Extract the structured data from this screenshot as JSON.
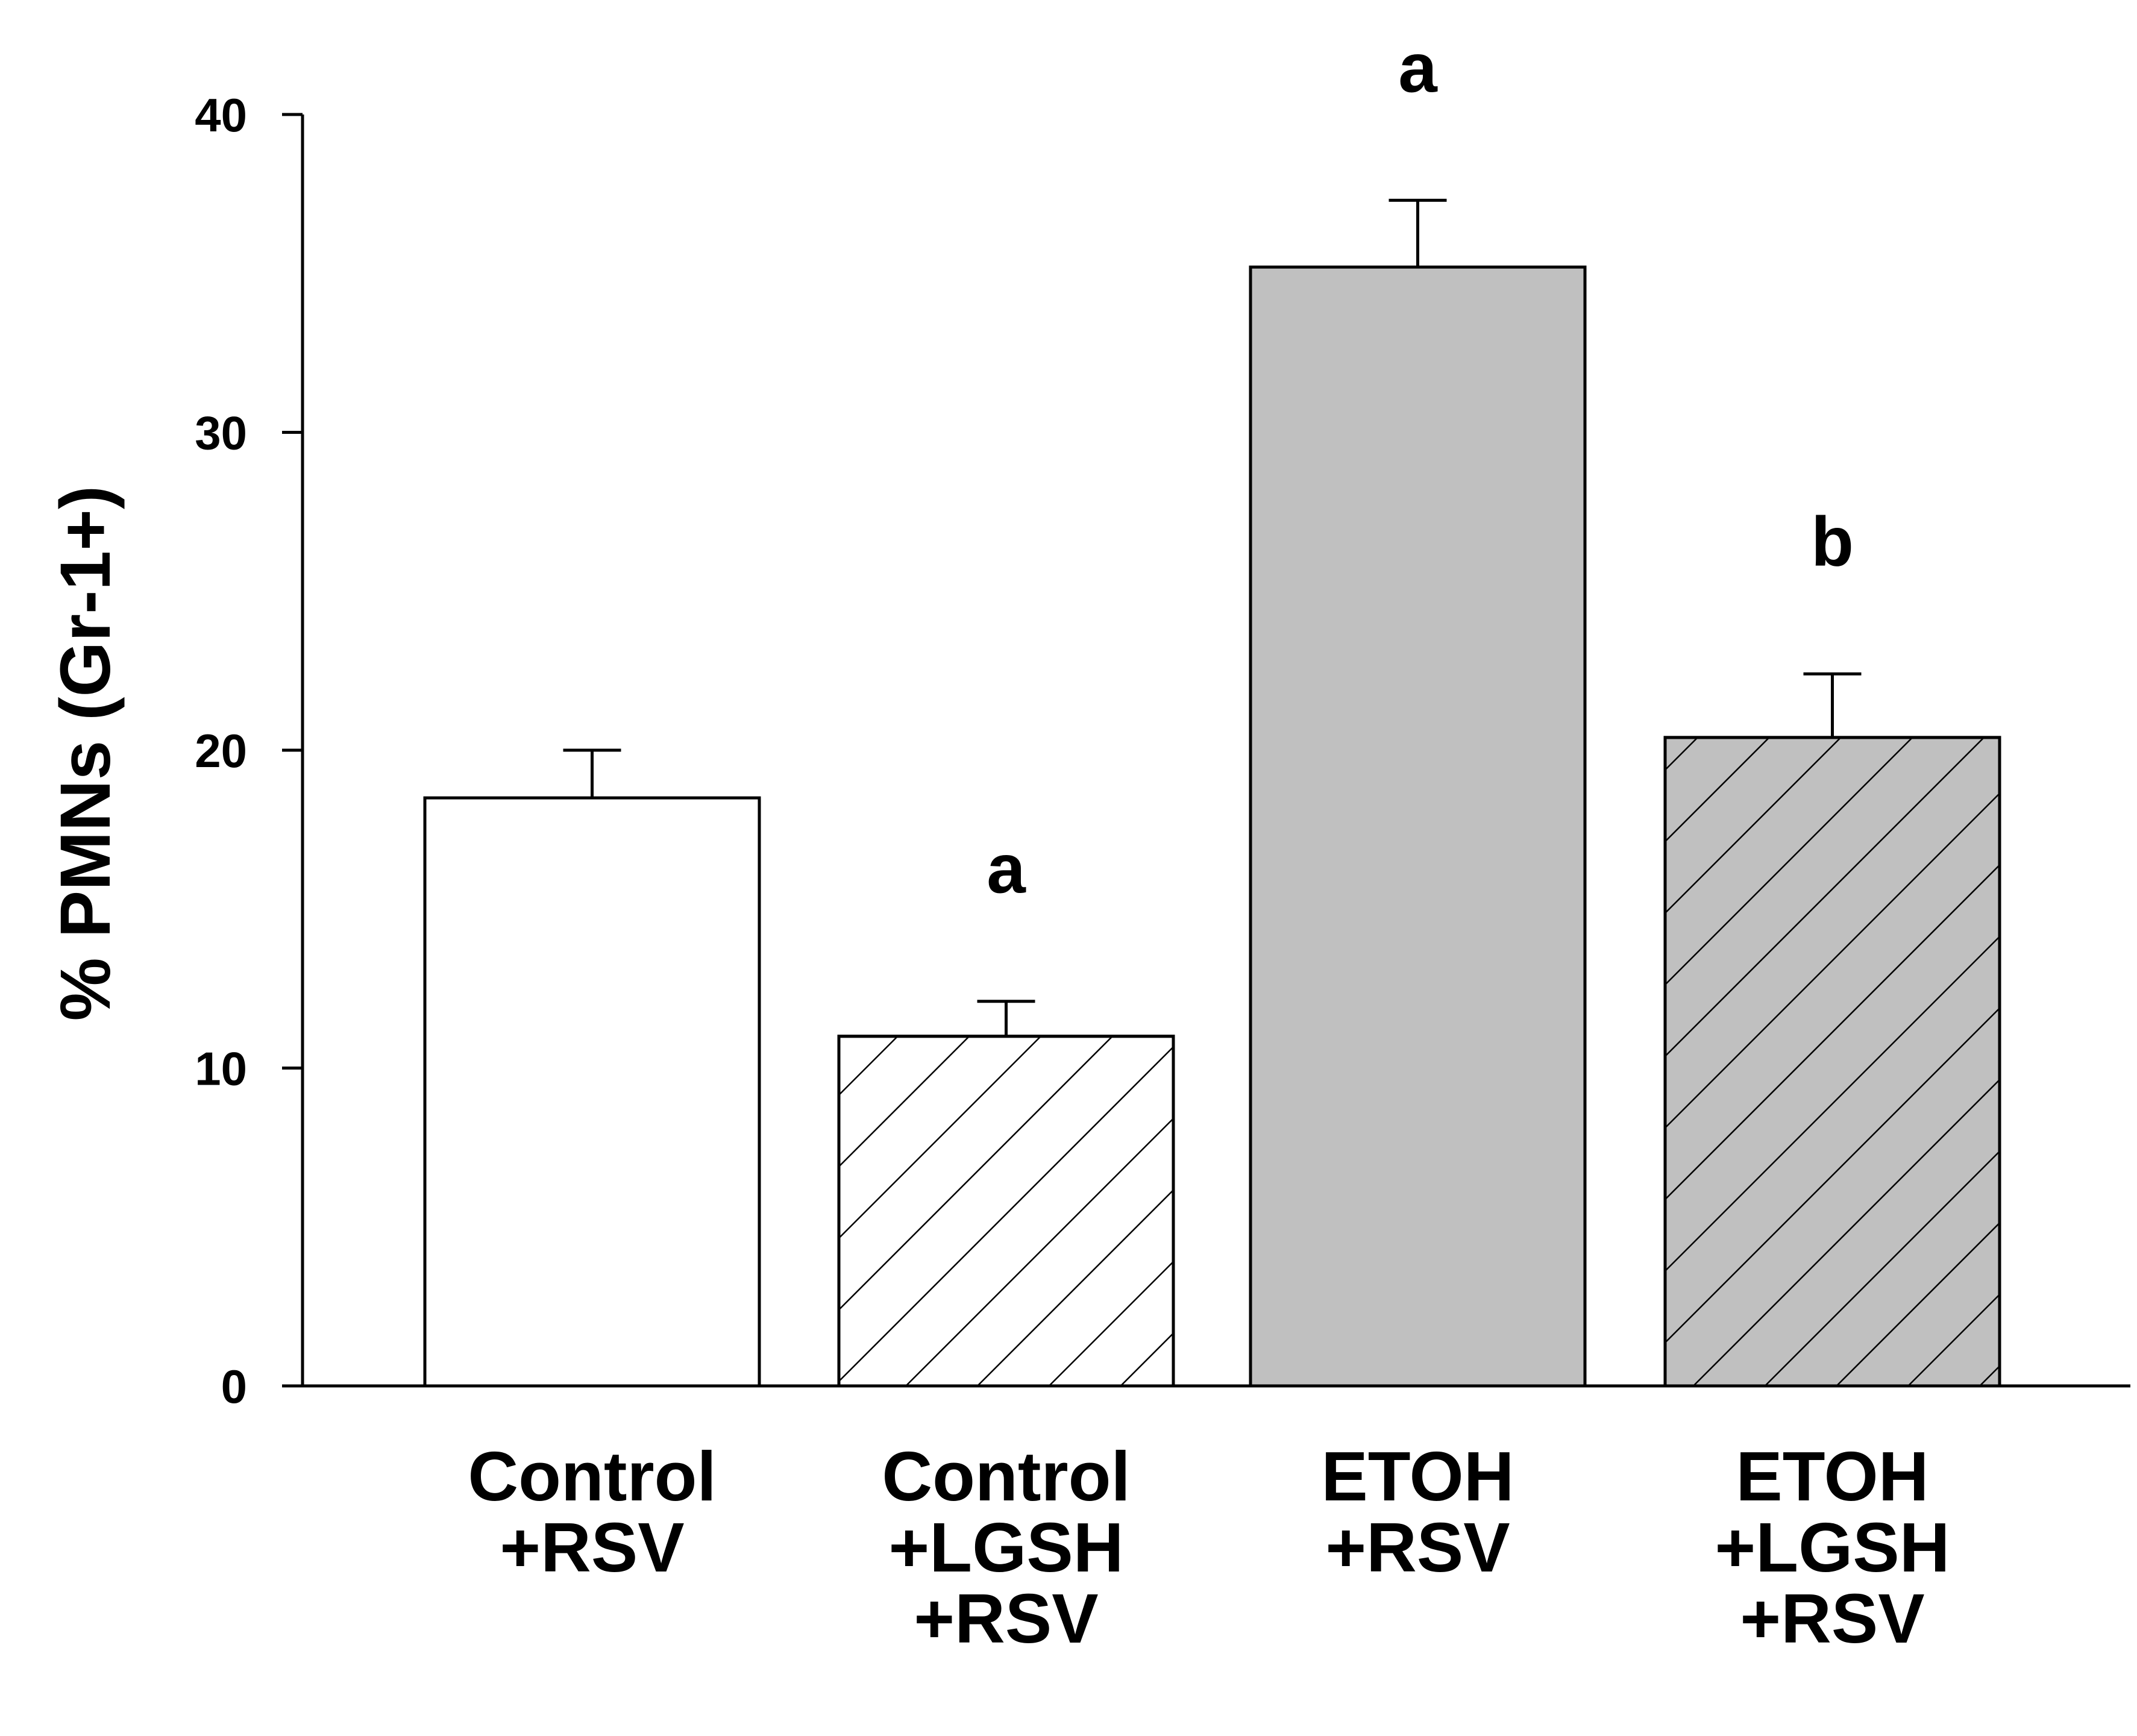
{
  "chart_data": {
    "type": "bar",
    "title": "",
    "xlabel": "",
    "ylabel": "% PMNs (Gr-1+)",
    "ylim": [
      0,
      40
    ],
    "yticks": [
      0,
      10,
      20,
      30,
      40
    ],
    "grid": false,
    "categories": [
      [
        "Control",
        "+RSV"
      ],
      [
        "Control",
        "+LGSH",
        "+RSV"
      ],
      [
        "ETOH",
        "+RSV"
      ],
      [
        "ETOH",
        "+LGSH",
        "+RSV"
      ]
    ],
    "values": [
      18.5,
      11.0,
      35.2,
      20.4
    ],
    "errors": [
      1.5,
      1.1,
      2.1,
      2.0
    ],
    "annotations": [
      "",
      "a",
      "a",
      "b"
    ],
    "fills": [
      "#ffffff",
      "#ffffff",
      "#c0c0c0",
      "#c0c0c0"
    ],
    "hatched": [
      false,
      true,
      false,
      true
    ],
    "colors": {
      "axis": "#000000",
      "bar_edge": "#000000"
    }
  }
}
